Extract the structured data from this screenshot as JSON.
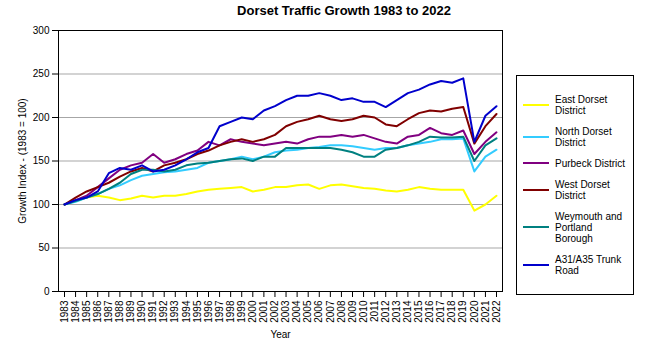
{
  "chart_data": {
    "type": "line",
    "title": "Dorset Traffic Growth 1983 to 2022",
    "x_label": "Year",
    "y_label": "Growth Index - (1983 = 100)",
    "x": [
      1983,
      1984,
      1985,
      1986,
      1987,
      1988,
      1989,
      1990,
      1991,
      1992,
      1993,
      1994,
      1995,
      1996,
      1997,
      1998,
      1999,
      2000,
      2001,
      2002,
      2003,
      2004,
      2005,
      2006,
      2007,
      2008,
      2009,
      2010,
      2011,
      2012,
      2013,
      2014,
      2015,
      2016,
      2017,
      2018,
      2019,
      2020,
      2021,
      2022
    ],
    "xlim": [
      1983,
      2022
    ],
    "xticks": [
      1983,
      1984,
      1985,
      1986,
      1987,
      1988,
      1989,
      1990,
      1991,
      1992,
      1993,
      1994,
      1995,
      1996,
      1997,
      1998,
      1999,
      2000,
      2001,
      2002,
      2003,
      2004,
      2005,
      2006,
      2007,
      2008,
      2009,
      2010,
      2011,
      2012,
      2013,
      2014,
      2015,
      2016,
      2017,
      2018,
      2019,
      2020,
      2021,
      2022
    ],
    "ylim": [
      0,
      300
    ],
    "yticks": [
      0,
      50,
      100,
      150,
      200,
      250,
      300
    ],
    "grid": true,
    "legend": "right",
    "series": [
      {
        "name": "East Dorset District",
        "color": "#ffff00",
        "values": [
          100,
          104,
          108,
          110,
          108,
          105,
          107,
          110,
          108,
          110,
          110,
          112,
          115,
          117,
          118,
          119,
          120,
          115,
          117,
          120,
          120,
          122,
          123,
          118,
          122,
          123,
          121,
          119,
          118,
          116,
          115,
          117,
          120,
          118,
          117,
          117,
          117,
          93,
          100,
          110
        ]
      },
      {
        "name": "North Dorset District",
        "color": "#33ccff",
        "values": [
          100,
          103,
          108,
          112,
          118,
          122,
          128,
          133,
          135,
          137,
          138,
          140,
          142,
          148,
          150,
          152,
          155,
          152,
          155,
          160,
          162,
          163,
          165,
          166,
          168,
          168,
          167,
          165,
          163,
          165,
          165,
          168,
          170,
          172,
          175,
          175,
          176,
          138,
          155,
          163
        ]
      },
      {
        "name": "Purbeck District",
        "color": "#800080",
        "values": [
          100,
          105,
          110,
          120,
          130,
          140,
          145,
          148,
          158,
          148,
          152,
          158,
          162,
          172,
          168,
          175,
          172,
          170,
          168,
          170,
          172,
          170,
          175,
          178,
          178,
          180,
          178,
          180,
          176,
          172,
          170,
          178,
          180,
          188,
          182,
          180,
          185,
          158,
          172,
          183
        ]
      },
      {
        "name": "West Dorset District",
        "color": "#800000",
        "values": [
          100,
          108,
          115,
          120,
          125,
          132,
          138,
          142,
          138,
          145,
          148,
          152,
          158,
          162,
          168,
          172,
          175,
          172,
          175,
          180,
          190,
          195,
          198,
          202,
          198,
          196,
          198,
          202,
          200,
          192,
          190,
          198,
          205,
          208,
          207,
          210,
          212,
          170,
          190,
          204
        ]
      },
      {
        "name": "Weymouth and Portland Borough",
        "color": "#008080",
        "values": [
          100,
          104,
          108,
          112,
          118,
          125,
          135,
          140,
          140,
          138,
          140,
          145,
          147,
          148,
          150,
          152,
          153,
          150,
          155,
          155,
          165,
          165,
          165,
          165,
          165,
          163,
          160,
          155,
          155,
          163,
          165,
          168,
          172,
          178,
          177,
          177,
          178,
          150,
          168,
          176
        ]
      },
      {
        "name": "A31/A35 Trunk Road",
        "color": "#0000cc",
        "values": [
          100,
          105,
          108,
          115,
          136,
          142,
          140,
          145,
          138,
          140,
          145,
          152,
          160,
          165,
          190,
          195,
          200,
          198,
          208,
          213,
          220,
          225,
          225,
          228,
          225,
          220,
          222,
          218,
          218,
          212,
          220,
          228,
          232,
          238,
          242,
          240,
          245,
          172,
          202,
          213
        ]
      }
    ]
  }
}
